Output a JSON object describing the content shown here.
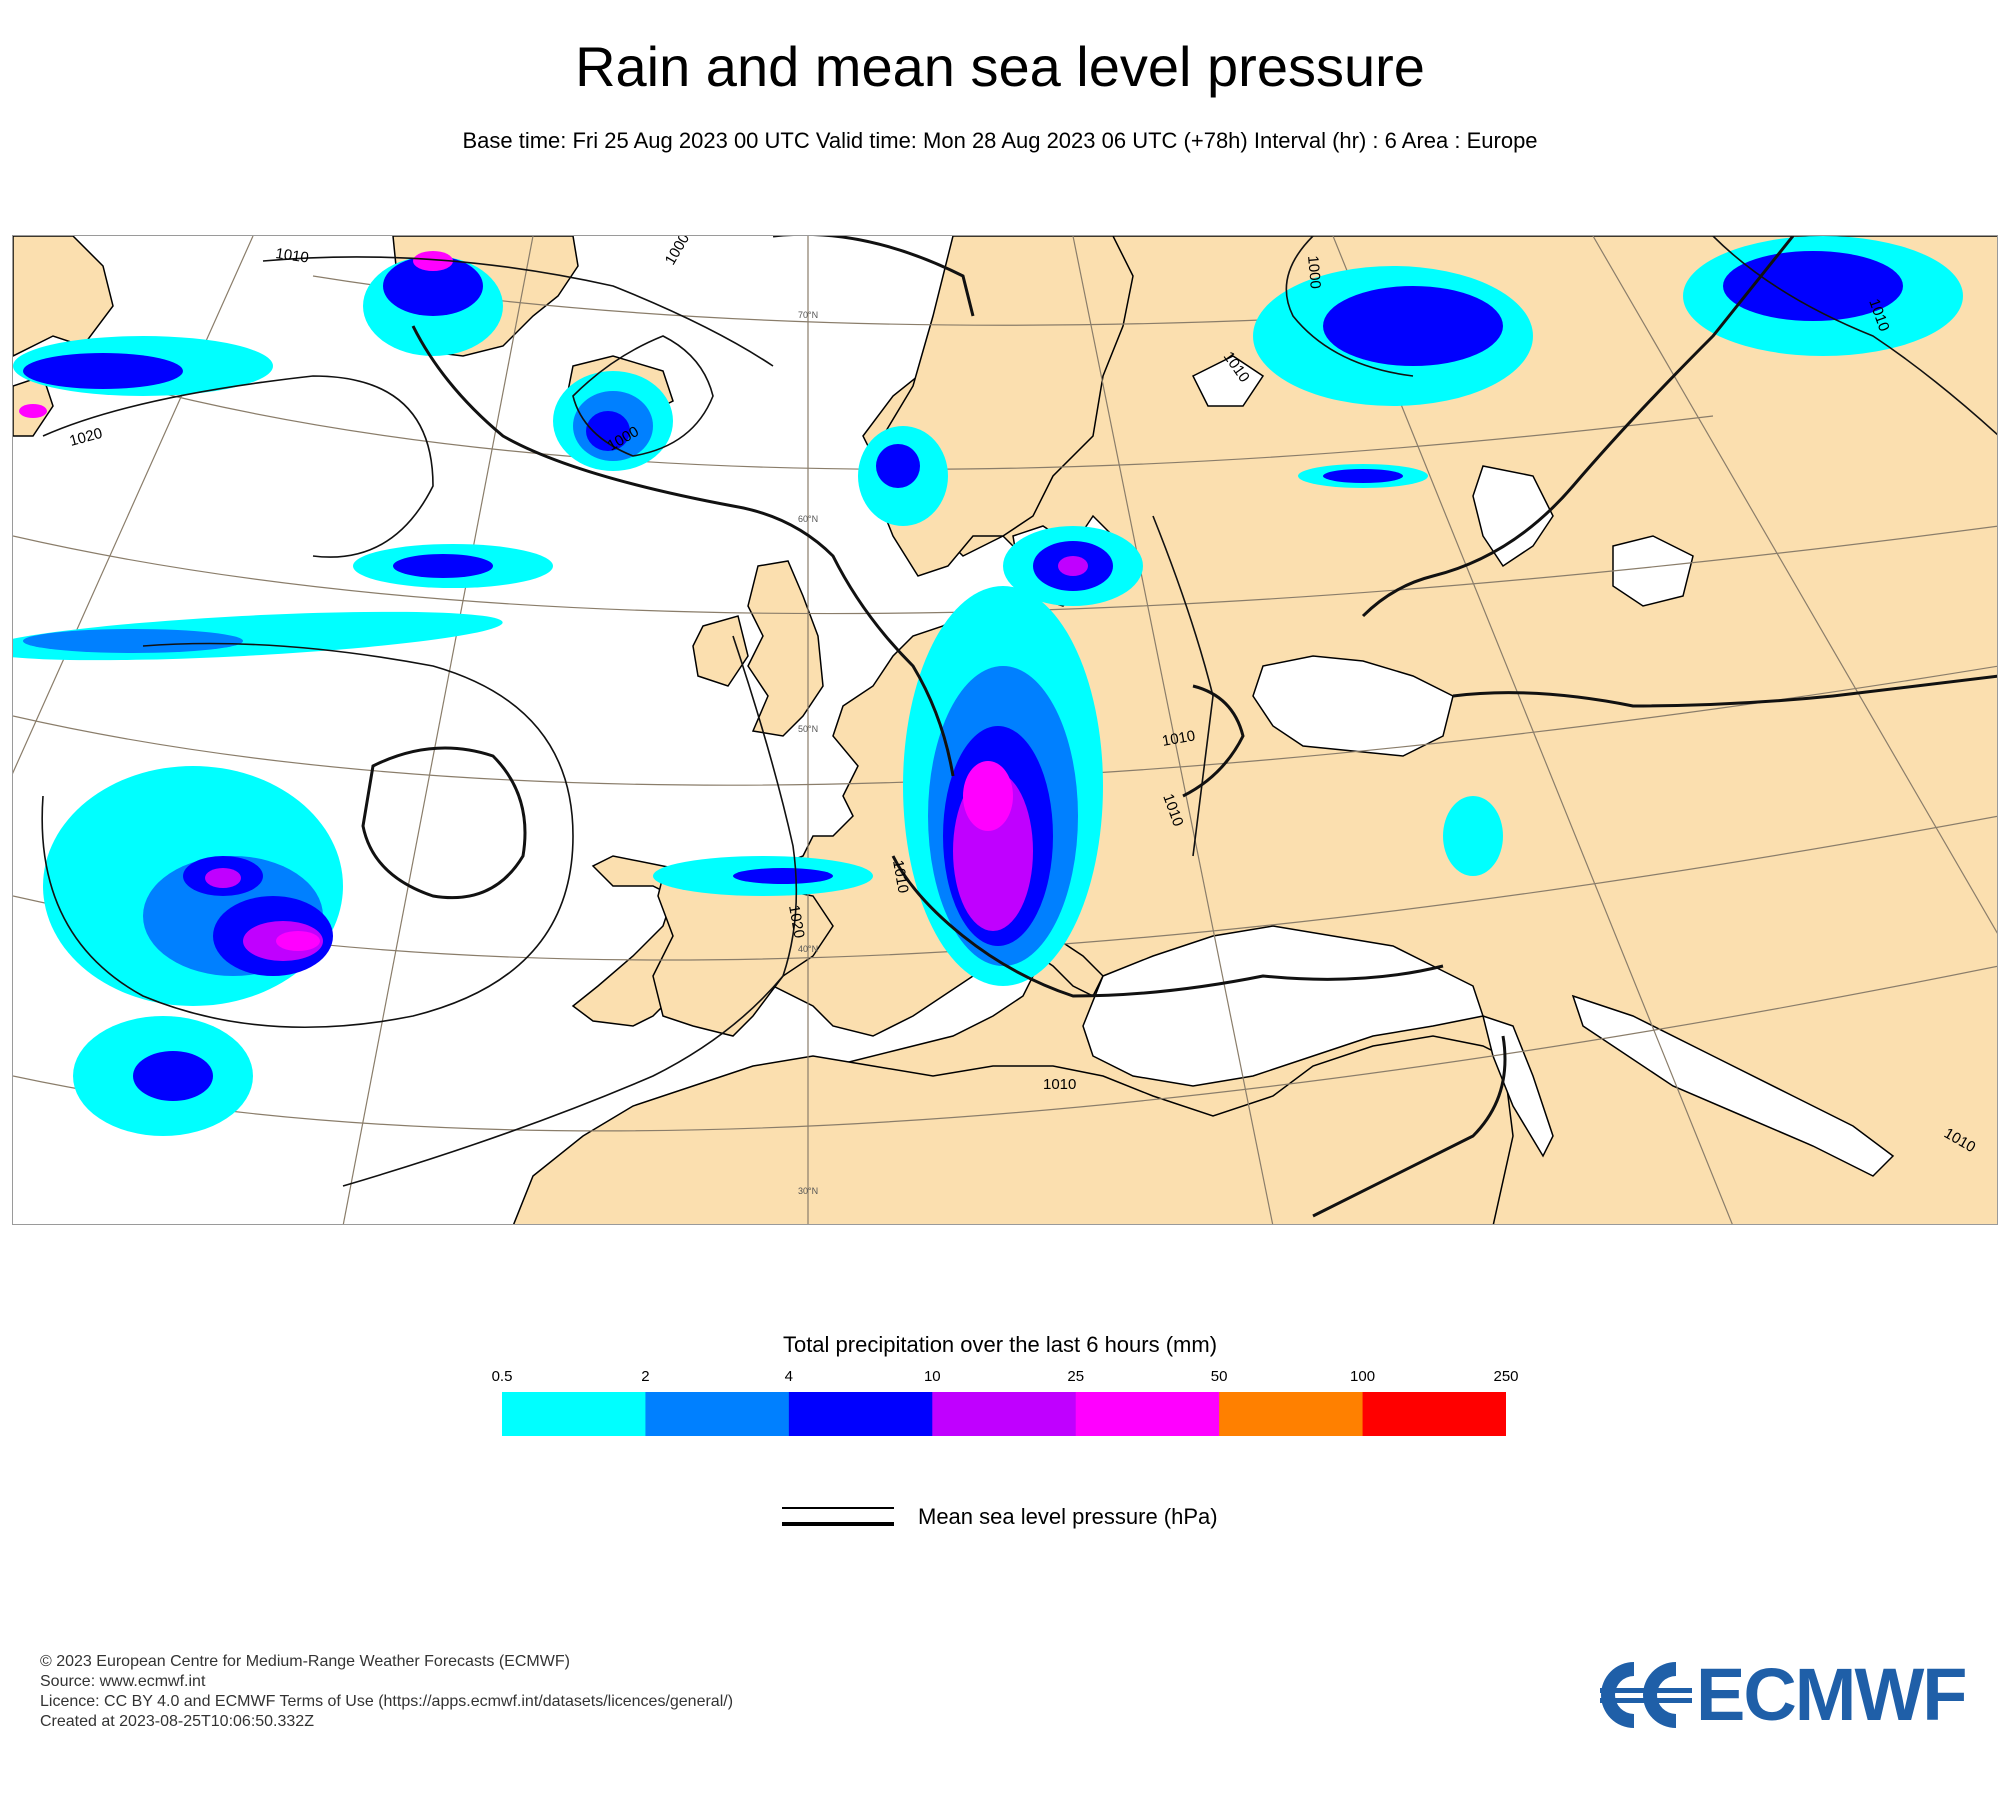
{
  "header": {
    "title": "Rain and mean sea level pressure",
    "subtitle": "Base time: Fri 25 Aug 2023 00 UTC Valid time: Mon 28 Aug 2023 06 UTC (+78h) Interval (hr) : 6 Area : Europe"
  },
  "map": {
    "area": "Europe",
    "land_color": "#fbdfaf",
    "sea_color": "#ffffff",
    "isobar_labels": [
      "1010",
      "1000",
      "1020",
      "1000",
      "1010",
      "1000",
      "1010",
      "1010",
      "1010",
      "1020",
      "1010",
      "1010",
      "1010"
    ],
    "latitude_labels": [
      "70°N",
      "60°N",
      "50°N",
      "40°N",
      "30°N"
    ]
  },
  "colorbar": {
    "title": "Total precipitation over the last 6 hours (mm)",
    "ticks": [
      "0.5",
      "2",
      "4",
      "10",
      "25",
      "50",
      "100",
      "250"
    ],
    "colors": [
      "#00ffff",
      "#0080ff",
      "#0000ff",
      "#c000ff",
      "#ff00ff",
      "#ff8000",
      "#ff0000"
    ]
  },
  "mslp_legend": {
    "label": "Mean sea level pressure (hPa)"
  },
  "footer": {
    "copyright": "© 2023 European Centre for Medium-Range Weather Forecasts (ECMWF)",
    "source": "Source: www.ecmwf.int",
    "licence": "Licence: CC BY 4.0 and ECMWF Terms of Use (https://apps.ecmwf.int/datasets/licences/general/)",
    "created": "Created at 2023-08-25T10:06:50.332Z"
  },
  "logo": {
    "text": "ECMWF",
    "color": "#1f5fa8"
  }
}
